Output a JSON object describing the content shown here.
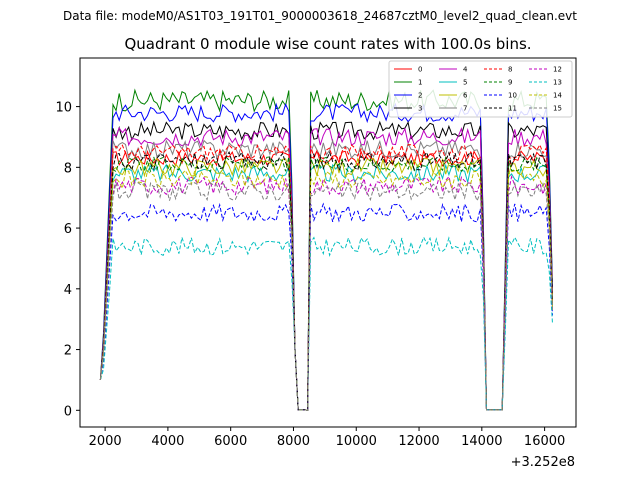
{
  "header": {
    "suptitle": "Data file: modeM0/AS1T03_191T01_9000003618_24687cztM0_level2_quad_clean.evt"
  },
  "chart_data": {
    "type": "line",
    "title": "Quadrant 0 module wise count rates with 100.0s bins.",
    "xlabel": "",
    "ylabel": "",
    "x_offset_label": "+3.252e8",
    "xlim": [
      1200,
      17000
    ],
    "ylim": [
      -0.55,
      11.6
    ],
    "xticks": [
      2000,
      4000,
      6000,
      8000,
      10000,
      12000,
      14000,
      16000
    ],
    "xtick_labels": [
      "2000",
      "4000",
      "6000",
      "8000",
      "10000",
      "12000",
      "14000",
      "16000"
    ],
    "yticks": [
      0,
      2,
      4,
      6,
      8,
      10
    ],
    "ytick_labels": [
      "0",
      "2",
      "4",
      "6",
      "8",
      "10"
    ],
    "legend_position": "top-right",
    "segments": [
      {
        "start": 1850,
        "rise_end": 2250,
        "plateau_end": 7900,
        "fall_end": 8050
      },
      {
        "start": 8450,
        "rise_end": 8550,
        "plateau_end": 14000,
        "fall_end": 14100
      },
      {
        "start": 14700,
        "rise_end": 14800,
        "plateau_end": 16100,
        "fall_end": 16300
      }
    ],
    "gap_value": 0.02,
    "series": [
      {
        "name": "0",
        "level": 8.3,
        "noise": 0.25,
        "color": "#ff0000",
        "dashed": false
      },
      {
        "name": "1",
        "level": 10.2,
        "noise": 0.35,
        "color": "#008000",
        "dashed": false
      },
      {
        "name": "2",
        "level": 9.8,
        "noise": 0.3,
        "color": "#0000ff",
        "dashed": false
      },
      {
        "name": "3",
        "level": 9.2,
        "noise": 0.3,
        "color": "#000000",
        "dashed": false
      },
      {
        "name": "4",
        "level": 9.0,
        "noise": 0.3,
        "color": "#bf00bf",
        "dashed": false
      },
      {
        "name": "5",
        "level": 7.8,
        "noise": 0.3,
        "color": "#00bfbf",
        "dashed": false
      },
      {
        "name": "6",
        "level": 8.0,
        "noise": 0.3,
        "color": "#bfbf00",
        "dashed": false
      },
      {
        "name": "7",
        "level": 8.6,
        "noise": 0.3,
        "color": "#808080",
        "dashed": false
      },
      {
        "name": "8",
        "level": 8.5,
        "noise": 0.25,
        "color": "#ff0000",
        "dashed": true
      },
      {
        "name": "9",
        "level": 8.1,
        "noise": 0.25,
        "color": "#008000",
        "dashed": true
      },
      {
        "name": "10",
        "level": 6.5,
        "noise": 0.3,
        "color": "#0000ff",
        "dashed": true
      },
      {
        "name": "11",
        "level": 8.2,
        "noise": 0.3,
        "color": "#000000",
        "dashed": true
      },
      {
        "name": "12",
        "level": 7.4,
        "noise": 0.3,
        "color": "#bf00bf",
        "dashed": true
      },
      {
        "name": "13",
        "level": 5.4,
        "noise": 0.3,
        "color": "#00bfbf",
        "dashed": true
      },
      {
        "name": "14",
        "level": 7.6,
        "noise": 0.3,
        "color": "#bfbf00",
        "dashed": true
      },
      {
        "name": "15",
        "level": 7.2,
        "noise": 0.3,
        "color": "#808080",
        "dashed": true
      }
    ]
  }
}
